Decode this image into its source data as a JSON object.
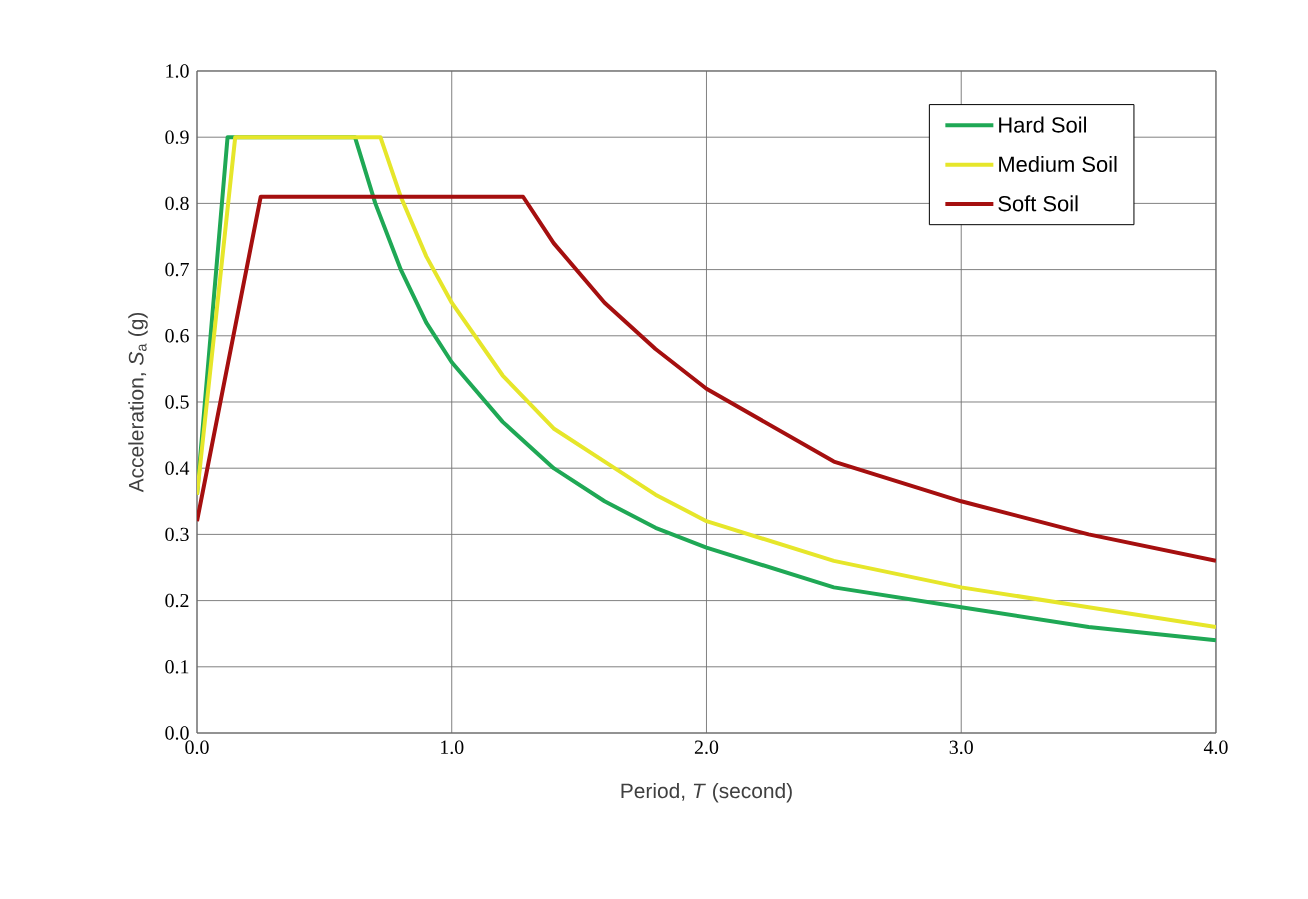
{
  "chart_data": {
    "type": "line",
    "xlabel": "Period, *T* (second)",
    "ylabel": "Acceleration, *S*$_{a}$ (g)",
    "xlim": [
      0,
      4
    ],
    "ylim": [
      0,
      1
    ],
    "xticks": [
      {
        "value": 0,
        "label": "0.0"
      },
      {
        "value": 1,
        "label": "1.0"
      },
      {
        "value": 2,
        "label": "2.0"
      },
      {
        "value": 3,
        "label": "3.0"
      },
      {
        "value": 4,
        "label": "4.0"
      }
    ],
    "yticks": [
      {
        "value": 0,
        "label": "0.0"
      },
      {
        "value": 0.1,
        "label": "0.1"
      },
      {
        "value": 0.2,
        "label": "0.2"
      },
      {
        "value": 0.3,
        "label": "0.3"
      },
      {
        "value": 0.4,
        "label": "0.4"
      },
      {
        "value": 0.5,
        "label": "0.5"
      },
      {
        "value": 0.6,
        "label": "0.6"
      },
      {
        "value": 0.7,
        "label": "0.7"
      },
      {
        "value": 0.8,
        "label": "0.8"
      },
      {
        "value": 0.9,
        "label": "0.9"
      },
      {
        "value": 1,
        "label": "1.0"
      }
    ],
    "grid": true,
    "legend": "top right",
    "line_style": "solid",
    "series": [
      {
        "name": "Hard Soil",
        "color": "#1fa855",
        "x": [
          0,
          0.12,
          0.62,
          0.7,
          0.8,
          0.9,
          1.0,
          1.2,
          1.4,
          1.6,
          1.8,
          2.0,
          2.5,
          3.0,
          3.5,
          4.0
        ],
        "values": [
          0.36,
          0.9,
          0.9,
          0.8,
          0.7,
          0.62,
          0.56,
          0.47,
          0.4,
          0.35,
          0.31,
          0.28,
          0.22,
          0.19,
          0.16,
          0.14
        ]
      },
      {
        "name": "Medium Soil",
        "color": "#e6e62a",
        "x": [
          0,
          0.15,
          0.72,
          0.8,
          0.9,
          1.0,
          1.2,
          1.4,
          1.6,
          1.8,
          2.0,
          2.5,
          3.0,
          3.5,
          4.0
        ],
        "values": [
          0.36,
          0.9,
          0.9,
          0.81,
          0.72,
          0.65,
          0.54,
          0.46,
          0.41,
          0.36,
          0.32,
          0.26,
          0.22,
          0.19,
          0.16
        ]
      },
      {
        "name": "Soft Soil",
        "color": "#a50f0f",
        "x": [
          0,
          0.25,
          1.28,
          1.4,
          1.6,
          1.8,
          2.0,
          2.5,
          3.0,
          3.5,
          4.0
        ],
        "values": [
          0.32,
          0.81,
          0.81,
          0.74,
          0.65,
          0.58,
          0.52,
          0.41,
          0.35,
          0.3,
          0.26
        ]
      }
    ]
  }
}
